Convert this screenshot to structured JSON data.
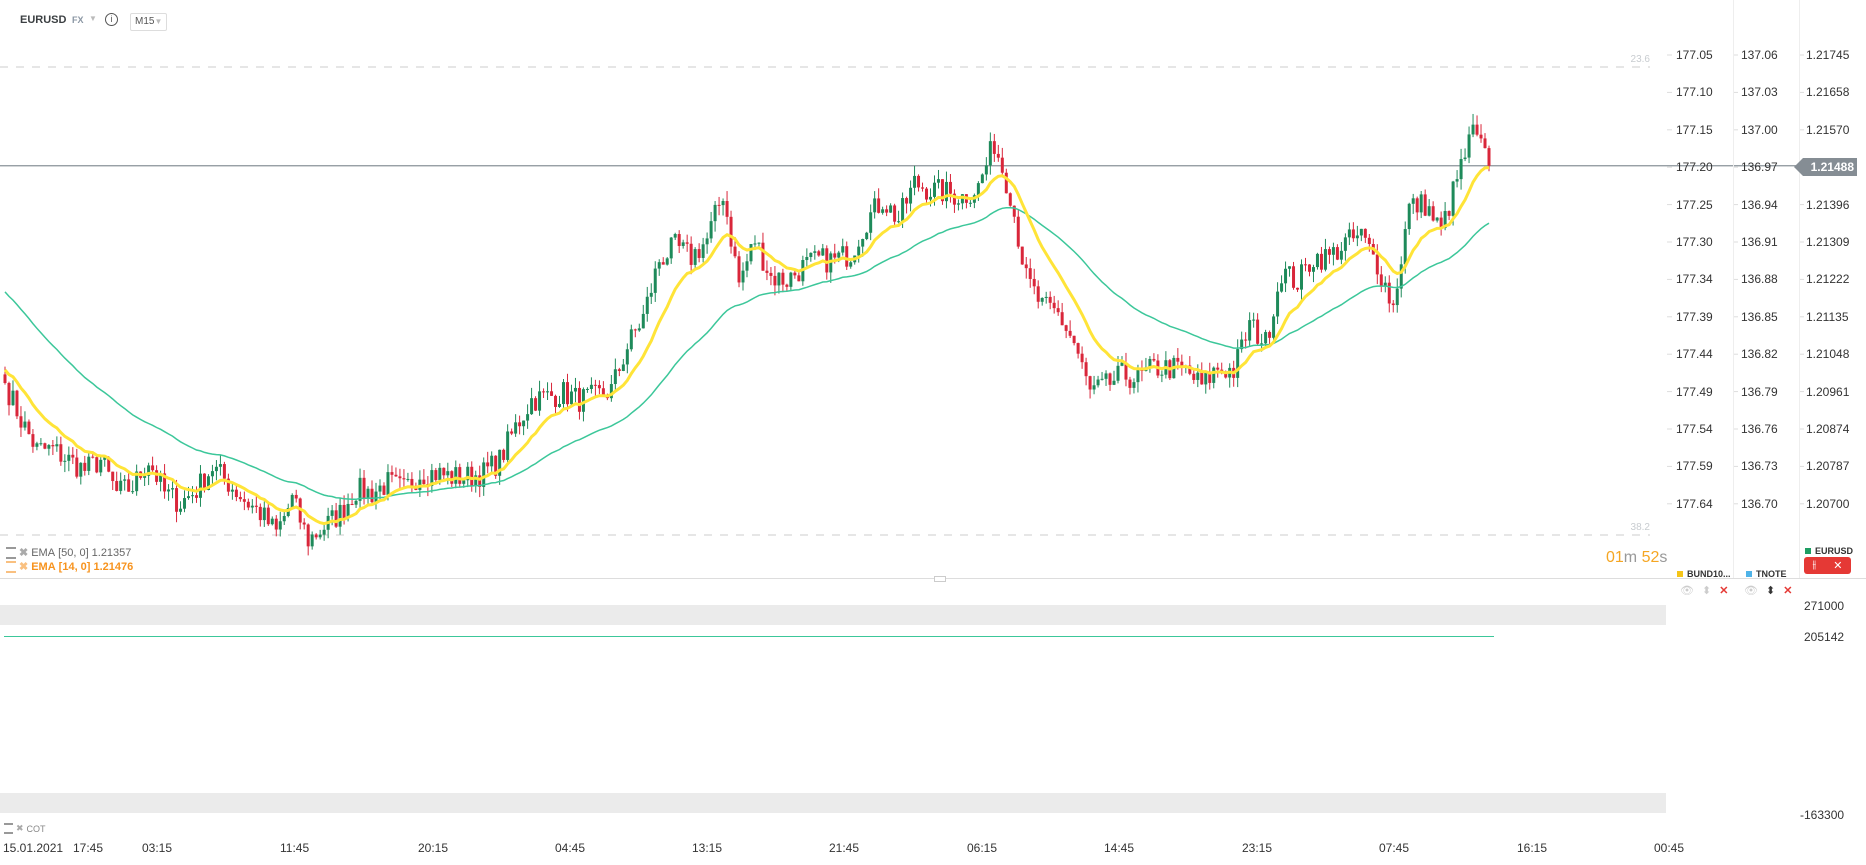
{
  "header": {
    "symbol": "EURUSD",
    "market": "FX",
    "info_icon": "info-icon",
    "timeframe": "M15"
  },
  "colors": {
    "bull": "#1e8a5a",
    "bear": "#d9263a",
    "ema50": "#3cc79a",
    "ema14": "#ffe438",
    "price_tag": "#858d94",
    "timer": "#f5a623"
  },
  "fib_levels": [
    {
      "label": "23.6",
      "price": 1.21745
    },
    {
      "label": "38.2",
      "price": 1.20632
    }
  ],
  "axes": {
    "bund": [
      "177.05",
      "177.10",
      "177.15",
      "177.20",
      "177.25",
      "177.30",
      "177.34",
      "177.39",
      "177.44",
      "177.49",
      "177.54",
      "177.59",
      "177.64"
    ],
    "tnote": [
      "137.06",
      "137.03",
      "137.00",
      "136.97",
      "136.94",
      "136.91",
      "136.88",
      "136.85",
      "136.82",
      "136.79",
      "136.76",
      "136.73",
      "136.70"
    ],
    "eurusd": [
      "1.21745",
      "1.21658",
      "1.21570",
      "1.21488",
      "1.21396",
      "1.21309",
      "1.21222",
      "1.21135",
      "1.21048",
      "1.20961",
      "1.20874",
      "1.20787",
      "1.20700"
    ]
  },
  "current_price": "1.21488",
  "current_price_value": 1.21488,
  "indicators": [
    {
      "name": "EMA",
      "params": "[50, 0]",
      "value": "1.21357",
      "color": "#3cc79a"
    },
    {
      "name": "EMA",
      "params": "[14, 0]",
      "value": "1.21476",
      "color": "#ffe438"
    }
  ],
  "timer": {
    "min": "01",
    "min_unit": "m",
    "sec": "52",
    "sec_unit": "s"
  },
  "instruments": [
    {
      "name": "BUND10...",
      "color": "#f5c518"
    },
    {
      "name": "TNOTE",
      "color": "#4fb3e8"
    },
    {
      "name": "EURUSD",
      "color": "#1e9e63"
    }
  ],
  "lower_pane": {
    "label": "COT",
    "ticks": [
      "271000",
      "205142",
      "-163300"
    ]
  },
  "time_axis": [
    "15.01.2021",
    "17:45",
    "03:15",
    "11:45",
    "20:15",
    "04:45",
    "13:15",
    "21:45",
    "06:15",
    "14:45",
    "23:15",
    "07:45",
    "16:15",
    "00:45"
  ],
  "chart_data": {
    "type": "candlestick",
    "interval": "M15",
    "hourly_closes": [
      1.20984,
      1.20898,
      1.20829,
      1.20829,
      1.20805,
      1.20782,
      1.20805,
      1.20729,
      1.20743,
      1.20805,
      1.20729,
      1.20706,
      1.20736,
      1.20789,
      1.20752,
      1.20713,
      1.20682,
      1.20636,
      1.20713,
      1.2062,
      1.2065,
      1.20682,
      1.20736,
      1.20729,
      1.20752,
      1.20736,
      1.20775,
      1.20775,
      1.20766,
      1.20766,
      1.20775,
      1.20805,
      1.20882,
      1.20945,
      1.20952,
      1.20961,
      1.20945,
      1.20952,
      1.20968,
      1.21068,
      1.21137,
      1.21269,
      1.213,
      1.21276,
      1.21316,
      1.21425,
      1.21216,
      1.21316,
      1.2123,
      1.21223,
      1.21253,
      1.21269,
      1.21269,
      1.21286,
      1.21362,
      1.21409,
      1.21362,
      1.21448,
      1.21432,
      1.21425,
      1.21416,
      1.21439,
      1.21541,
      1.21425,
      1.21225,
      1.2116,
      1.21144,
      1.21077,
      1.20961,
      1.20977,
      1.21003,
      1.20993,
      1.21019,
      1.21019,
      1.21012,
      1.20977,
      1.21019,
      1.21012,
      1.21119,
      1.21077,
      1.21244,
      1.21218,
      1.21276,
      1.21276,
      1.21309,
      1.21325,
      1.2126,
      1.2116,
      1.21392,
      1.21399,
      1.21334,
      1.21457,
      1.21566,
      1.21488
    ],
    "ema50_start": 1.21204,
    "ema14_start": 1.21019,
    "ylim": [
      1.20632,
      1.2177
    ]
  }
}
